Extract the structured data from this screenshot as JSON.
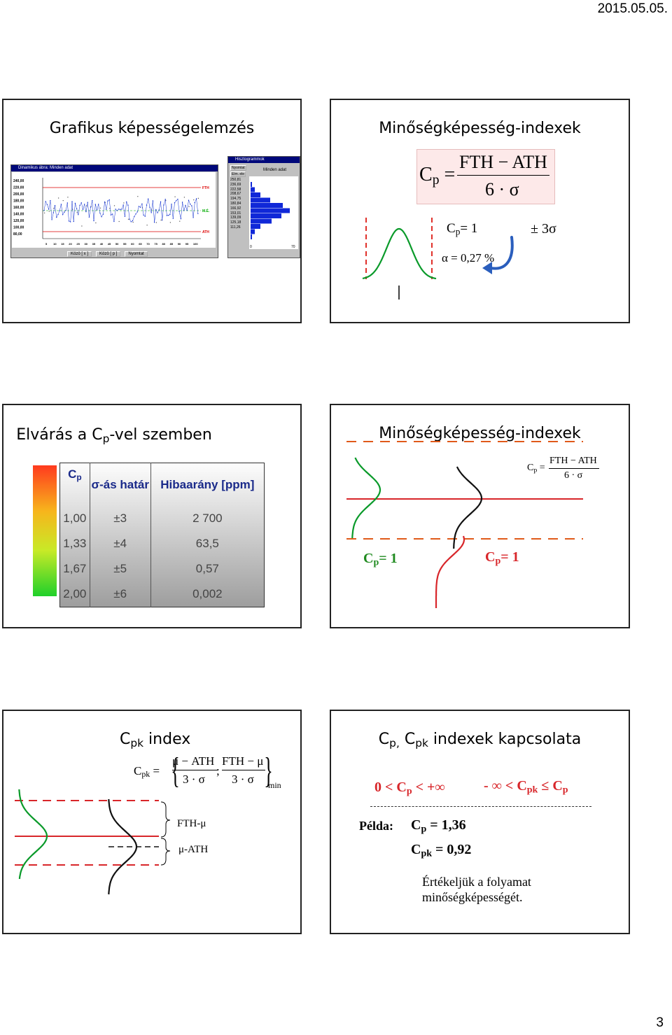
{
  "header": {
    "date": "2015.05.05."
  },
  "footer": {
    "page_number": "3"
  },
  "slide1": {
    "title": "Grafikus képességelemzés",
    "dyn_window_title": "Dinamikus ábra: Minden adat",
    "hist_window_title": "Hisztogrammok",
    "hist_subtitle": "Minden adat",
    "hist_values": [
      "250,81",
      "236,69",
      "222,58",
      "208,67",
      "194,75",
      "180,84",
      "166,92",
      "153,01",
      "139,09",
      "125,18",
      "111,26"
    ],
    "y_ticks": [
      "240,00",
      "220,00",
      "200,00",
      "180,00",
      "160,00",
      "140,00",
      "120,00",
      "100,00",
      "80,00"
    ],
    "x_ticks": [
      "5",
      "10",
      "15",
      "20",
      "25",
      "30",
      "35",
      "40",
      "45",
      "50",
      "55",
      "60",
      "65",
      "70",
      "75",
      "80",
      "85",
      "90",
      "95",
      "100"
    ],
    "labels": {
      "fth": "FTH",
      "ath": "ATH",
      "mean": "M.É."
    },
    "buttons": [
      "Közö [ x ]",
      "Közö [ p ]",
      "Nyomtat"
    ],
    "hist_buttons": [
      "Nyomtat",
      "Elm. ele"
    ],
    "hist_axis": [
      "0",
      "70"
    ]
  },
  "slide2": {
    "title": "Minőségképesség-indexek",
    "formula_lhs": "C",
    "formula_sub": "p",
    "formula_num": "FTH − ATH",
    "formula_den": "6 · σ",
    "cp_eq": "= 1",
    "pm3s": "± 3σ",
    "alpha": "α = 0,27 %"
  },
  "slide3": {
    "title_prefix": "Elvárás a C",
    "title_sub": "p",
    "title_suffix": "-vel szemben",
    "headers": {
      "cp": "C",
      "cp_sub": "p",
      "sigma": "σ-ás határ",
      "ppm": "Hibaarány [ppm]"
    },
    "rows": [
      {
        "cp": "1,00",
        "sigma": "±3",
        "ppm": "2 700"
      },
      {
        "cp": "1,33",
        "sigma": "±4",
        "ppm": "63,5"
      },
      {
        "cp": "1,67",
        "sigma": "±5",
        "ppm": "0,57"
      },
      {
        "cp": "2,00",
        "sigma": "±6",
        "ppm": "0,002"
      }
    ]
  },
  "slide4": {
    "title": "Minőségképesség-indexek",
    "formula_num": "FTH − ATH",
    "formula_den": "6 · σ",
    "cp_label_left": "C",
    "cp_label_right": "C",
    "cp_eq": "= 1"
  },
  "slide5": {
    "title_prefix": "C",
    "title_sub": "pk",
    "title_suffix": " index",
    "formula_lhs": "C",
    "formula_lhs_sub": "pk",
    "frac1_num": "μ − ATH",
    "frac1_den": "3 · σ",
    "frac2_num": "FTH − μ",
    "frac2_den": "3 · σ",
    "min": "min",
    "label_top": "FTH-μ",
    "label_bottom": "μ-ATH"
  },
  "slide6": {
    "title": "C",
    "title_sub1": "p,",
    "title_mid": " C",
    "title_sub2": "pk",
    "title_suffix": " indexek kapcsolata",
    "range1": "0 < C",
    "range1_sub": "p",
    "range1_end": " < +∞",
    "range2": "- ∞ < C",
    "range2_sub": "pk",
    "range2_end": " ≤ C",
    "range2_sub2": "p",
    "example_label": "Példa:",
    "ex_cp": "C",
    "ex_cp_sub": "p",
    "ex_cp_val": " = 1,36",
    "ex_cpk": "C",
    "ex_cpk_sub": "pk",
    "ex_cpk_val": " = 0,92",
    "conclusion_l1": "Értékeljük a folyamat",
    "conclusion_l2": "minőségképességét."
  }
}
